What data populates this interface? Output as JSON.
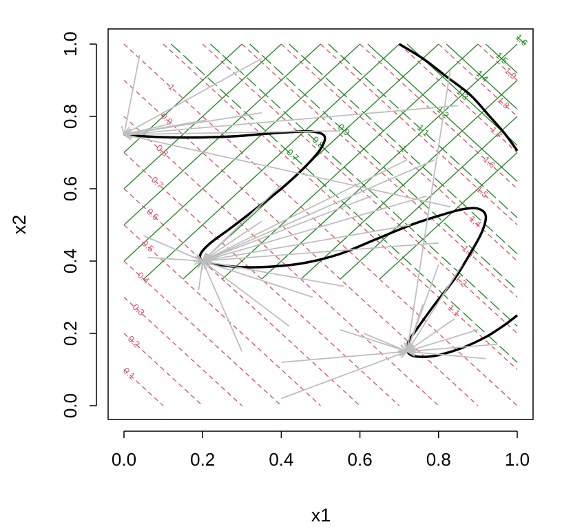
{
  "chart_data": {
    "type": "contour",
    "title": "",
    "xlabel": "x1",
    "ylabel": "x2",
    "xlim": [
      0,
      1
    ],
    "ylim": [
      0,
      1
    ],
    "x_ticks": [
      "0.0",
      "0.2",
      "0.4",
      "0.6",
      "0.8",
      "1.0"
    ],
    "y_ticks": [
      "0.0",
      "0.2",
      "0.4",
      "0.6",
      "0.8",
      "1.0"
    ],
    "grid": false,
    "legend": "none",
    "colors": {
      "constraint_contours": "#DF536B",
      "objective_contours": "#228B22",
      "constraint_boundary": "#000000",
      "search_arrows": "#BEBEBE"
    },
    "constraint_contour_levels": [
      {
        "level": 0.1,
        "label": "0.1"
      },
      {
        "level": 0.2,
        "label": "0.2"
      },
      {
        "level": 0.3,
        "label": "0.3"
      },
      {
        "level": 0.4,
        "label": "0.4"
      },
      {
        "level": 0.5,
        "label": "0.5"
      },
      {
        "level": 0.6,
        "label": "0.6"
      },
      {
        "level": 0.7,
        "label": "0.7"
      },
      {
        "level": 0.8,
        "label": "0.8"
      },
      {
        "level": 0.9,
        "label": "0.9"
      },
      {
        "level": 1.0,
        "label": "1"
      },
      {
        "level": 1.1,
        "label": "1.1"
      },
      {
        "level": 1.2,
        "label": "1.2"
      },
      {
        "level": 1.3,
        "label": "1.3"
      },
      {
        "level": 1.4,
        "label": "1.4"
      },
      {
        "level": 1.5,
        "label": "1.5"
      },
      {
        "level": 1.6,
        "label": "1.6"
      },
      {
        "level": 1.7,
        "label": "1.7"
      },
      {
        "level": 1.8,
        "label": "1.8"
      },
      {
        "level": 1.9,
        "label": "1.9"
      }
    ],
    "objective_contour_levels": [
      {
        "level": 0.7,
        "label": "0.7"
      },
      {
        "level": 0.8,
        "label": "0.8"
      },
      {
        "level": 0.9,
        "label": "0.9"
      },
      {
        "level": 1.0,
        "label": "1"
      },
      {
        "level": 1.1,
        "label": "1.1"
      },
      {
        "level": 1.2,
        "label": "1.2"
      },
      {
        "level": 1.3,
        "label": "1.3"
      },
      {
        "level": 1.4,
        "label": "1.4"
      },
      {
        "level": 1.5,
        "label": "1.5"
      },
      {
        "level": 1.6,
        "label": "1.6"
      },
      {
        "level": 1.7,
        "label": "1.7"
      }
    ],
    "constraint_boundary_curves": [
      {
        "points": [
          [
            0.0,
            0.75
          ],
          [
            0.05,
            0.745
          ],
          [
            0.12,
            0.742
          ],
          [
            0.2,
            0.742
          ],
          [
            0.28,
            0.745
          ],
          [
            0.36,
            0.752
          ],
          [
            0.43,
            0.757
          ],
          [
            0.48,
            0.758
          ],
          [
            0.51,
            0.745
          ],
          [
            0.5,
            0.71
          ],
          [
            0.46,
            0.66
          ],
          [
            0.4,
            0.6
          ],
          [
            0.33,
            0.54
          ],
          [
            0.27,
            0.49
          ],
          [
            0.22,
            0.45
          ],
          [
            0.195,
            0.42
          ],
          [
            0.2,
            0.4
          ],
          [
            0.24,
            0.39
          ],
          [
            0.3,
            0.383
          ],
          [
            0.38,
            0.385
          ],
          [
            0.46,
            0.395
          ],
          [
            0.55,
            0.42
          ],
          [
            0.64,
            0.46
          ],
          [
            0.73,
            0.5
          ],
          [
            0.8,
            0.525
          ],
          [
            0.86,
            0.543
          ],
          [
            0.9,
            0.545
          ],
          [
            0.92,
            0.525
          ],
          [
            0.91,
            0.48
          ],
          [
            0.88,
            0.42
          ],
          [
            0.84,
            0.35
          ],
          [
            0.79,
            0.28
          ],
          [
            0.75,
            0.22
          ],
          [
            0.725,
            0.18
          ],
          [
            0.72,
            0.155
          ],
          [
            0.73,
            0.14
          ],
          [
            0.76,
            0.135
          ],
          [
            0.8,
            0.14
          ],
          [
            0.86,
            0.16
          ],
          [
            0.92,
            0.19
          ],
          [
            0.97,
            0.225
          ],
          [
            1.0,
            0.25
          ]
        ]
      },
      {
        "points": [
          [
            0.7,
            1.0
          ],
          [
            0.76,
            0.96
          ],
          [
            0.82,
            0.91
          ],
          [
            0.88,
            0.86
          ],
          [
            0.93,
            0.8
          ],
          [
            0.97,
            0.75
          ],
          [
            1.0,
            0.705
          ]
        ]
      }
    ],
    "arrow_targets": [
      [
        0.0,
        0.75
      ],
      [
        0.2,
        0.4
      ],
      [
        0.72,
        0.15
      ]
    ],
    "arrows": [
      {
        "from": [
          0.04,
          0.97
        ],
        "to": [
          0.0,
          0.75
        ]
      },
      {
        "from": [
          0.35,
          0.96
        ],
        "to": [
          0.0,
          0.75
        ]
      },
      {
        "from": [
          0.35,
          0.81
        ],
        "to": [
          0.0,
          0.75
        ]
      },
      {
        "from": [
          0.21,
          0.79
        ],
        "to": [
          0.0,
          0.75
        ]
      },
      {
        "from": [
          0.12,
          0.78
        ],
        "to": [
          0.0,
          0.75
        ]
      },
      {
        "from": [
          0.55,
          0.76
        ],
        "to": [
          0.0,
          0.75
        ]
      },
      {
        "from": [
          0.85,
          0.83
        ],
        "to": [
          0.0,
          0.75
        ]
      },
      {
        "from": [
          0.83,
          0.55
        ],
        "to": [
          0.0,
          0.75
        ]
      },
      {
        "from": [
          0.79,
          0.68
        ],
        "to": [
          0.2,
          0.4
        ]
      },
      {
        "from": [
          0.72,
          0.68
        ],
        "to": [
          0.2,
          0.4
        ]
      },
      {
        "from": [
          0.77,
          0.58
        ],
        "to": [
          0.2,
          0.4
        ]
      },
      {
        "from": [
          0.73,
          0.5
        ],
        "to": [
          0.2,
          0.4
        ]
      },
      {
        "from": [
          0.63,
          0.58
        ],
        "to": [
          0.2,
          0.4
        ]
      },
      {
        "from": [
          0.8,
          0.45
        ],
        "to": [
          0.2,
          0.4
        ]
      },
      {
        "from": [
          0.4,
          0.61
        ],
        "to": [
          0.2,
          0.4
        ]
      },
      {
        "from": [
          0.35,
          0.51
        ],
        "to": [
          0.2,
          0.4
        ]
      },
      {
        "from": [
          0.27,
          0.47
        ],
        "to": [
          0.2,
          0.4
        ]
      },
      {
        "from": [
          0.05,
          0.47
        ],
        "to": [
          0.2,
          0.4
        ]
      },
      {
        "from": [
          0.06,
          0.41
        ],
        "to": [
          0.2,
          0.4
        ]
      },
      {
        "from": [
          0.56,
          0.33
        ],
        "to": [
          0.2,
          0.4
        ]
      },
      {
        "from": [
          0.48,
          0.3
        ],
        "to": [
          0.2,
          0.4
        ]
      },
      {
        "from": [
          0.42,
          0.22
        ],
        "to": [
          0.2,
          0.4
        ]
      },
      {
        "from": [
          0.3,
          0.15
        ],
        "to": [
          0.2,
          0.4
        ]
      },
      {
        "from": [
          0.19,
          0.32
        ],
        "to": [
          0.2,
          0.4
        ]
      },
      {
        "from": [
          0.83,
          0.93
        ],
        "to": [
          0.72,
          0.15
        ]
      },
      {
        "from": [
          0.86,
          0.39
        ],
        "to": [
          0.72,
          0.15
        ]
      },
      {
        "from": [
          0.8,
          0.39
        ],
        "to": [
          0.72,
          0.15
        ]
      },
      {
        "from": [
          0.76,
          0.28
        ],
        "to": [
          0.72,
          0.15
        ]
      },
      {
        "from": [
          0.84,
          0.24
        ],
        "to": [
          0.72,
          0.15
        ]
      },
      {
        "from": [
          0.9,
          0.21
        ],
        "to": [
          0.72,
          0.15
        ]
      },
      {
        "from": [
          0.95,
          0.17
        ],
        "to": [
          0.72,
          0.15
        ]
      },
      {
        "from": [
          0.92,
          0.13
        ],
        "to": [
          0.72,
          0.15
        ]
      },
      {
        "from": [
          0.55,
          0.21
        ],
        "to": [
          0.72,
          0.15
        ]
      },
      {
        "from": [
          0.61,
          0.2
        ],
        "to": [
          0.72,
          0.15
        ]
      },
      {
        "from": [
          0.4,
          0.12
        ],
        "to": [
          0.72,
          0.15
        ]
      },
      {
        "from": [
          0.4,
          0.02
        ],
        "to": [
          0.72,
          0.15
        ]
      }
    ]
  }
}
